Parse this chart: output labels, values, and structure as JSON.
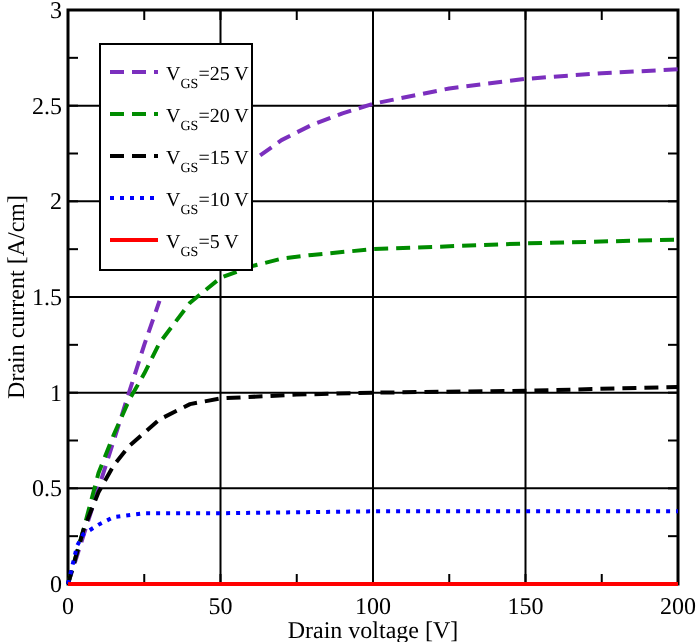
{
  "chart_data": {
    "type": "line",
    "xlabel": "Drain voltage [V]",
    "ylabel": "Drain current [A/cm]",
    "xlim": [
      0,
      200
    ],
    "ylim": [
      0,
      3
    ],
    "xticks": [
      0,
      {
        "value": 25,
        "label": null
      },
      50,
      {
        "value": 75,
        "label": null
      },
      100,
      {
        "value": 125,
        "label": null
      },
      150,
      {
        "value": 175,
        "label": null
      },
      200
    ],
    "yticks": [
      0,
      {
        "value": 0.25,
        "label": null
      },
      0.5,
      {
        "value": 0.75,
        "label": null
      },
      1,
      {
        "value": 1.25,
        "label": null
      },
      1.5,
      {
        "value": 1.75,
        "label": null
      },
      2,
      {
        "value": 2.25,
        "label": null
      },
      2.5,
      {
        "value": 2.75,
        "label": null
      },
      3
    ],
    "grid": true,
    "legend": "top left",
    "series": [
      {
        "name": "V$_{GS}$=25 V",
        "color": "#7b2fbe",
        "line_style": "dashed",
        "x": [
          0,
          5,
          10,
          15,
          20,
          25,
          30,
          35,
          40,
          50,
          63,
          70,
          80,
          90,
          100,
          125,
          150,
          175,
          200
        ],
        "values": [
          0,
          0.25,
          0.5,
          0.75,
          1.0,
          1.25,
          1.48,
          null,
          null,
          null,
          2.24,
          2.32,
          2.4,
          2.46,
          2.51,
          2.59,
          2.64,
          2.67,
          2.69
        ]
      },
      {
        "name": "V$_{GS}$=20 V",
        "color": "#008c00",
        "line_style": "dashed",
        "x": [
          0,
          5,
          10,
          15,
          20,
          25,
          30,
          40,
          50,
          60,
          70,
          80,
          100,
          150,
          200
        ],
        "values": [
          0,
          0.28,
          0.58,
          0.78,
          0.96,
          1.1,
          1.26,
          1.47,
          1.6,
          1.66,
          1.7,
          1.72,
          1.75,
          1.78,
          1.8
        ]
      },
      {
        "name": "V$_{GS}$=15 V",
        "color": "#000000",
        "line_style": "dashed",
        "x": [
          0,
          5,
          10,
          15,
          20,
          30,
          40,
          50,
          75,
          100,
          150,
          200
        ],
        "values": [
          0,
          0.28,
          0.48,
          0.62,
          0.72,
          0.86,
          0.94,
          0.97,
          0.99,
          1.0,
          1.01,
          1.03
        ]
      },
      {
        "name": "V$_{GS}$=10 V",
        "color": "#0000ff",
        "line_style": "dotted",
        "x": [
          0,
          3,
          5,
          10,
          15,
          25,
          50,
          100,
          200
        ],
        "values": [
          0,
          0.2,
          0.26,
          0.31,
          0.35,
          0.37,
          0.37,
          0.38,
          0.38
        ]
      },
      {
        "name": "V$_{GS}$=5 V",
        "color": "#ff0000",
        "line_style": "solid",
        "x": [
          0,
          200
        ],
        "values": [
          0,
          0
        ]
      }
    ]
  }
}
